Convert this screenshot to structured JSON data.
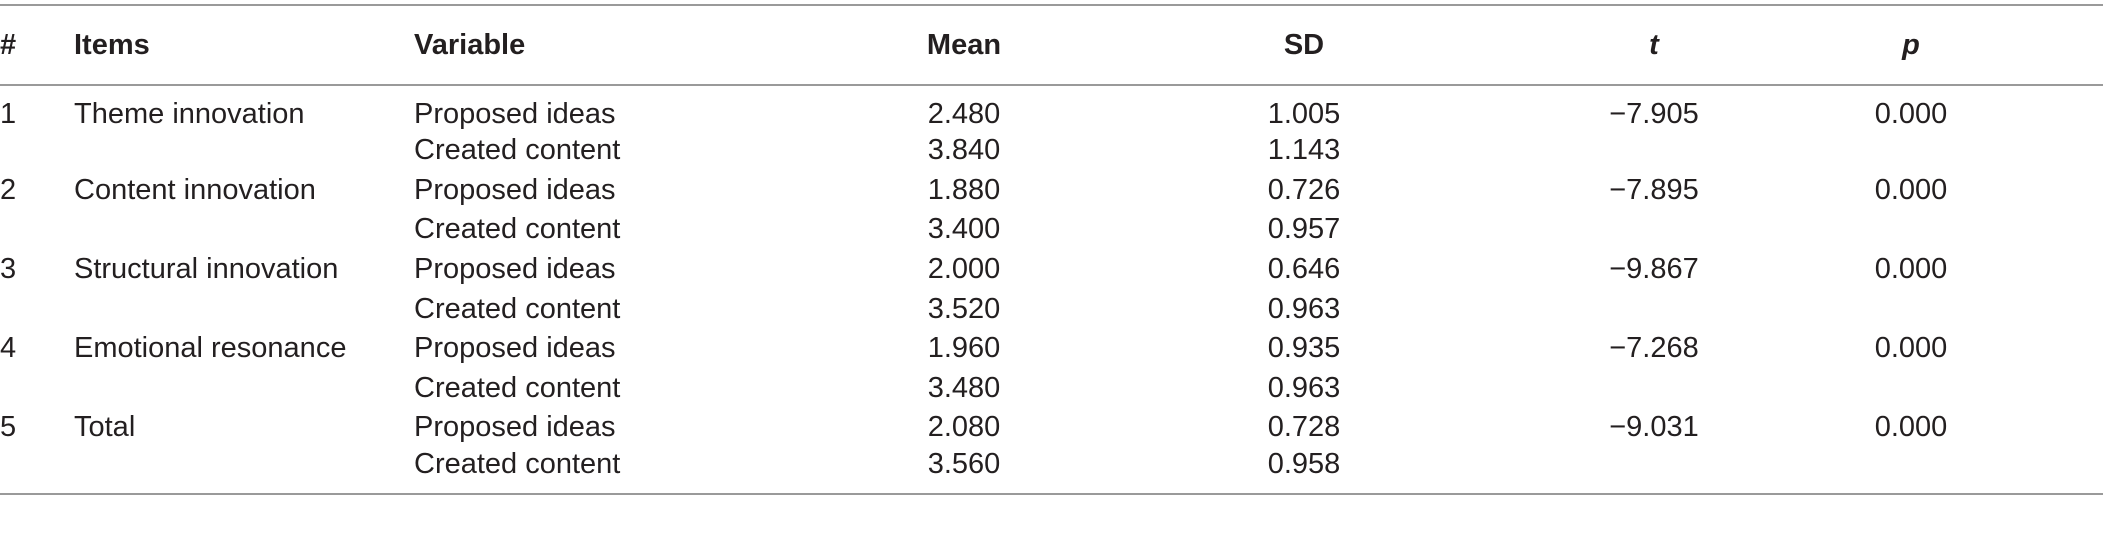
{
  "table": {
    "headers": {
      "num": "#",
      "items": "Items",
      "variable": "Variable",
      "mean": "Mean",
      "sd": "SD",
      "t": "t",
      "p": "p"
    },
    "rows": [
      {
        "num": "1",
        "item": "Theme innovation",
        "variable": "Proposed ideas",
        "mean": "2.480",
        "sd": "1.005",
        "t": "−7.905",
        "p": "0.000"
      },
      {
        "num": "",
        "item": "",
        "variable": "Created content",
        "mean": "3.840",
        "sd": "1.143",
        "t": "",
        "p": ""
      },
      {
        "num": "2",
        "item": "Content innovation",
        "variable": "Proposed ideas",
        "mean": "1.880",
        "sd": "0.726",
        "t": "−7.895",
        "p": "0.000"
      },
      {
        "num": "",
        "item": "",
        "variable": "Created content",
        "mean": "3.400",
        "sd": "0.957",
        "t": "",
        "p": ""
      },
      {
        "num": "3",
        "item": "Structural innovation",
        "variable": "Proposed ideas",
        "mean": "2.000",
        "sd": "0.646",
        "t": "−9.867",
        "p": "0.000"
      },
      {
        "num": "",
        "item": "",
        "variable": "Created content",
        "mean": "3.520",
        "sd": "0.963",
        "t": "",
        "p": ""
      },
      {
        "num": "4",
        "item": "Emotional resonance",
        "variable": "Proposed ideas",
        "mean": "1.960",
        "sd": "0.935",
        "t": "−7.268",
        "p": "0.000"
      },
      {
        "num": "",
        "item": "",
        "variable": "Created content",
        "mean": "3.480",
        "sd": "0.963",
        "t": "",
        "p": ""
      },
      {
        "num": "5",
        "item": "Total",
        "variable": "Proposed ideas",
        "mean": "2.080",
        "sd": "0.728",
        "t": "−9.031",
        "p": "0.000"
      },
      {
        "num": "",
        "item": "",
        "variable": "Created content",
        "mean": "3.560",
        "sd": "0.958",
        "t": "",
        "p": ""
      }
    ]
  }
}
